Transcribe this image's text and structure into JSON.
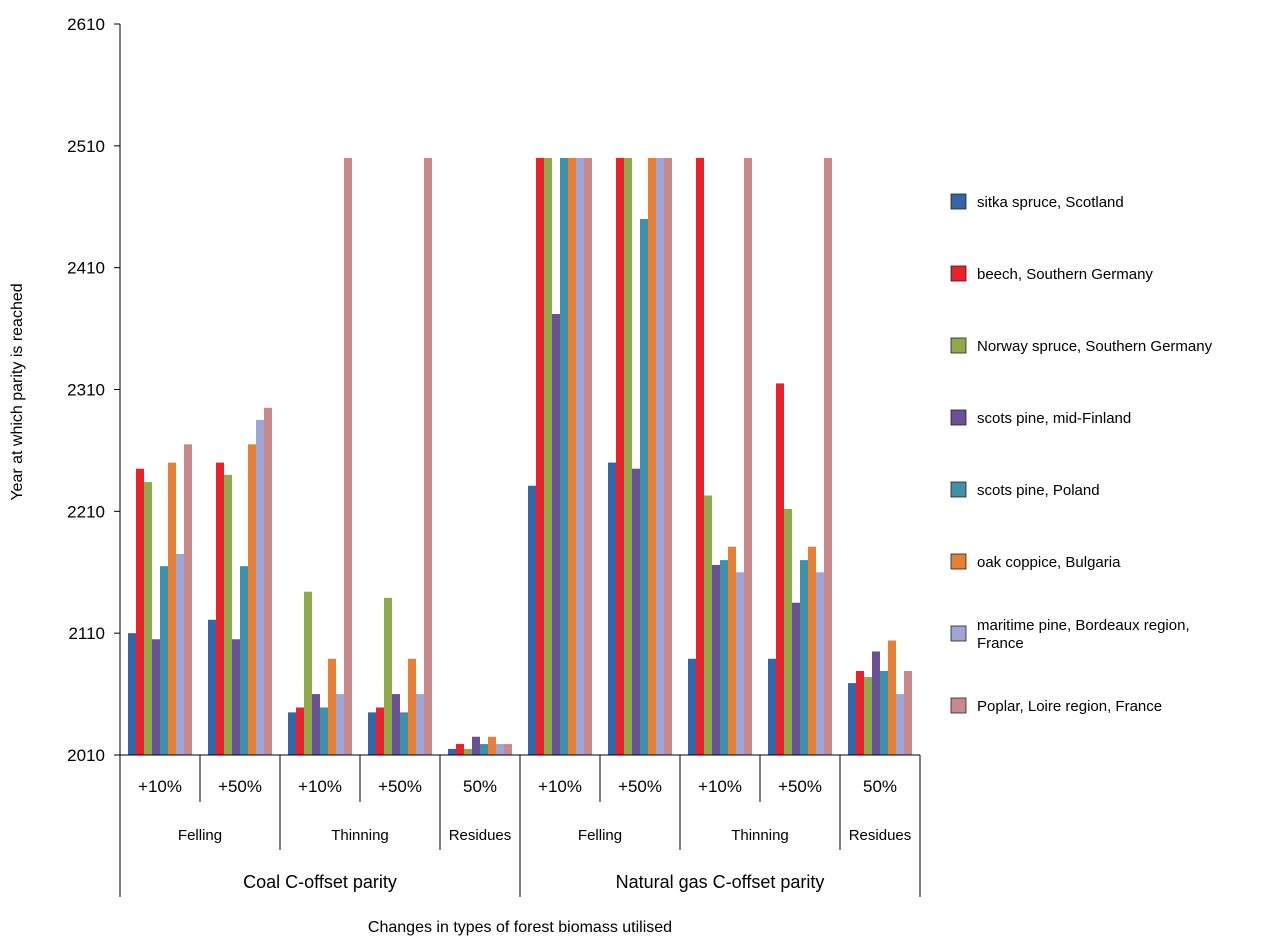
{
  "chart_data": {
    "type": "bar",
    "ylabel": "Year at which parity is reached",
    "xlabel": "Changes in types of forest biomass utilised",
    "ylim": [
      2010,
      2610
    ],
    "yticks": [
      2010,
      2110,
      2210,
      2310,
      2410,
      2510,
      2610
    ],
    "grid": false,
    "legend_position": "right",
    "categories": [
      {
        "parity": "Coal C-offset parity",
        "group": "Felling",
        "change": "+10%"
      },
      {
        "parity": "Coal C-offset parity",
        "group": "Felling",
        "change": "+50%"
      },
      {
        "parity": "Coal C-offset parity",
        "group": "Thinning",
        "change": "+10%"
      },
      {
        "parity": "Coal C-offset parity",
        "group": "Thinning",
        "change": "+50%"
      },
      {
        "parity": "Coal C-offset parity",
        "group": "Residues",
        "change": "50%"
      },
      {
        "parity": "Natural gas C-offset parity",
        "group": "Felling",
        "change": "+10%"
      },
      {
        "parity": "Natural gas C-offset parity",
        "group": "Felling",
        "change": "+50%"
      },
      {
        "parity": "Natural gas C-offset parity",
        "group": "Thinning",
        "change": "+10%"
      },
      {
        "parity": "Natural gas C-offset parity",
        "group": "Thinning",
        "change": "+50%"
      },
      {
        "parity": "Natural gas C-offset parity",
        "group": "Residues",
        "change": "50%"
      }
    ],
    "sub_labels": [
      "+10%",
      "+50%",
      "+10%",
      "+50%",
      "50%",
      "+10%",
      "+50%",
      "+10%",
      "+50%",
      "50%"
    ],
    "groups": [
      {
        "label": "Felling",
        "span": 2
      },
      {
        "label": "Thinning",
        "span": 2
      },
      {
        "label": "Residues",
        "span": 1
      },
      {
        "label": "Felling",
        "span": 2
      },
      {
        "label": "Thinning",
        "span": 2
      },
      {
        "label": "Residues",
        "span": 1
      }
    ],
    "conditions": [
      {
        "label": "Coal C-offset parity",
        "span": 5
      },
      {
        "label": "Natural gas C-offset parity",
        "span": 5
      }
    ],
    "series": [
      {
        "name": "sitka spruce, Scotland",
        "color": "#3466a8",
        "values": [
          2110,
          2121,
          2045,
          2045,
          2015,
          2231,
          2250,
          2089,
          2089,
          2069
        ]
      },
      {
        "name": "beech, Southern Germany",
        "color": "#e8212a",
        "values": [
          2245,
          2250,
          2049,
          2049,
          2019,
          2500,
          2500,
          2500,
          2315,
          2079
        ]
      },
      {
        "name": "Norway spruce, Southern Germany",
        "color": "#8faa4c",
        "values": [
          2234,
          2240,
          2144,
          2139,
          2015,
          2500,
          2500,
          2223,
          2212,
          2074
        ]
      },
      {
        "name": "scots pine, mid-Finland",
        "color": "#6a5196",
        "values": [
          2105,
          2105,
          2060,
          2060,
          2025,
          2372,
          2245,
          2166,
          2135,
          2095
        ]
      },
      {
        "name": "scots pine, Poland",
        "color": "#3f90a8",
        "values": [
          2165,
          2165,
          2049,
          2045,
          2019,
          2500,
          2450,
          2170,
          2170,
          2079
        ]
      },
      {
        "name": "oak coppice, Bulgaria",
        "color": "#e58035",
        "values": [
          2250,
          2265,
          2089,
          2089,
          2025,
          2500,
          2500,
          2181,
          2181,
          2104
        ]
      },
      {
        "name": "maritime pine, Bordeaux region, France",
        "color": "#9fa6d6",
        "values": [
          2175,
          2285,
          2060,
          2060,
          2019,
          2500,
          2500,
          2160,
          2160,
          2060
        ]
      },
      {
        "name": "Poplar, Loire region, France",
        "color": "#c8898c",
        "values": [
          2265,
          2295,
          2500,
          2500,
          2019,
          2500,
          2500,
          2500,
          2500,
          2079
        ]
      }
    ]
  }
}
